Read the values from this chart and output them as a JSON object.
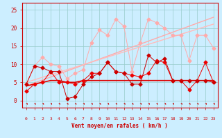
{
  "xlabel": "Vent moyen/en rafales ( km/h )",
  "bg_color": "#cceeff",
  "grid_color": "#99cccc",
  "x_values": [
    0,
    1,
    2,
    3,
    4,
    5,
    6,
    7,
    8,
    9,
    10,
    11,
    12,
    13,
    14,
    15,
    16,
    17,
    18,
    19,
    20,
    21,
    22,
    23
  ],
  "line_flat1": [
    4.0,
    4.5,
    5.0,
    5.5,
    5.5,
    5.0,
    5.0,
    5.5,
    5.5,
    5.5,
    5.5,
    5.5,
    5.5,
    5.5,
    5.5,
    5.5,
    5.5,
    5.5,
    5.5,
    5.5,
    5.5,
    5.5,
    5.5,
    5.5
  ],
  "line_flat1_color": "#dd0000",
  "line_flat1_lw": 1.2,
  "line_med": [
    2.5,
    4.5,
    5.0,
    8.0,
    5.0,
    5.0,
    4.5,
    5.5,
    7.5,
    7.5,
    10.5,
    8.0,
    7.5,
    7.0,
    6.5,
    7.5,
    11.0,
    10.5,
    5.5,
    5.5,
    3.0,
    5.5,
    10.5,
    5.0
  ],
  "line_med_color": "#ee0000",
  "line_med_lw": 0.7,
  "line_spiky": [
    4.5,
    9.5,
    9.0,
    8.0,
    8.0,
    0.5,
    1.0,
    4.5,
    6.5,
    7.5,
    10.5,
    8.0,
    7.5,
    4.5,
    4.5,
    12.5,
    10.5,
    11.5,
    5.5,
    5.5,
    5.5,
    5.5,
    5.5,
    5.0
  ],
  "line_spiky_color": "#cc0000",
  "line_spiky_lw": 0.7,
  "line_ramp1": [
    4.0,
    4.83,
    5.65,
    6.48,
    7.3,
    8.13,
    8.96,
    9.78,
    10.61,
    11.43,
    12.26,
    13.09,
    13.91,
    14.74,
    15.57,
    16.39,
    17.22,
    18.04,
    18.87,
    19.7,
    20.52,
    21.35,
    22.17,
    23.0
  ],
  "line_ramp1_color": "#ffaaaa",
  "line_ramp1_lw": 1.0,
  "line_ramp2": [
    5.0,
    5.7,
    6.4,
    7.1,
    7.8,
    8.5,
    9.2,
    9.9,
    10.6,
    11.3,
    12.0,
    12.7,
    13.4,
    14.1,
    14.8,
    15.5,
    16.2,
    16.9,
    17.6,
    18.3,
    19.0,
    19.7,
    20.4,
    21.1
  ],
  "line_ramp2_color": "#ffbbbb",
  "line_ramp2_lw": 1.0,
  "line_high": [
    4.5,
    9.5,
    12.0,
    10.0,
    9.5,
    6.0,
    7.5,
    8.5,
    16.0,
    19.5,
    18.0,
    22.5,
    20.5,
    8.0,
    16.0,
    22.5,
    21.5,
    20.0,
    18.0,
    18.0,
    11.0,
    18.0,
    18.0,
    14.5
  ],
  "line_high_color": "#ffaaaa",
  "line_high_lw": 0.7,
  "ylim": [
    -2,
    27
  ],
  "yticks": [
    0,
    5,
    10,
    15,
    20,
    25
  ],
  "marker_size": 2.5
}
